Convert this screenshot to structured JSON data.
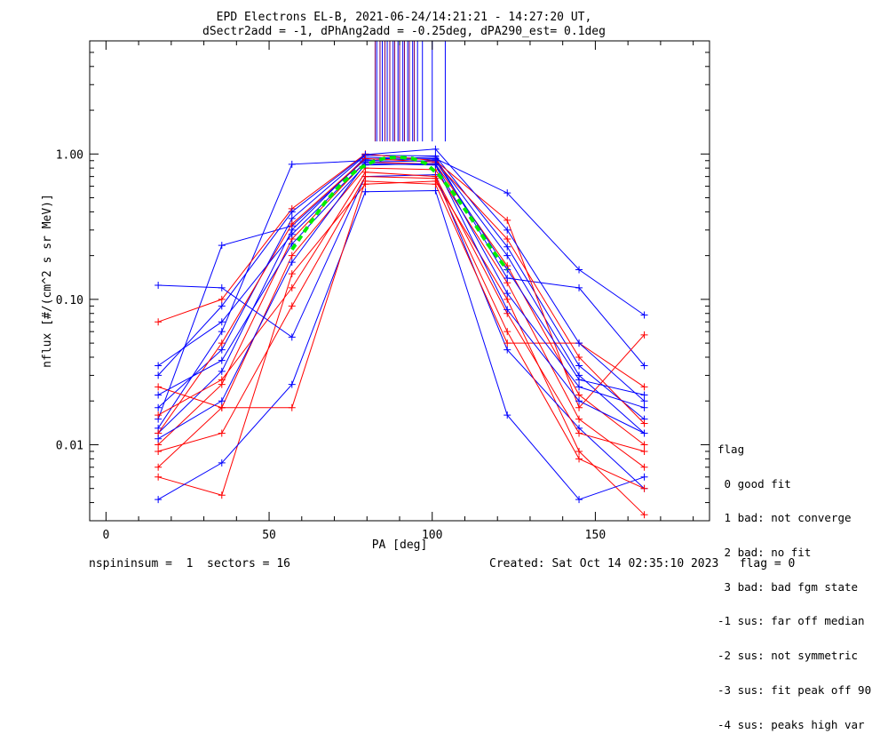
{
  "title_line1": "EPD Electrons EL-B, 2021-06-24/14:21:21 - 14:27:20 UT,",
  "title_line2": "dSectr2add = -1, dPhAng2add = -0.25deg, dPA290_est=   0.1deg",
  "footer_left": "nspininsum =  1  sectors = 16",
  "footer_right": "Created: Sat Oct 14 02:35:10 2023   flag = 0",
  "legend": {
    "title": "flag",
    "items": [
      " 0 good fit",
      " 1 bad: not converge",
      " 2 bad: no fit",
      " 3 bad: bad fgm state",
      "-1 sus: far off median",
      "-2 sus: not symmetric",
      "-3 sus: fit peak off 90",
      "-4 sus: peaks high var"
    ]
  },
  "colors": {
    "series_a": "#ff0000",
    "series_b": "#0000ff",
    "fit": "#00ee00",
    "marker_a": "#800060",
    "marker_b": "#0000ff"
  },
  "chart_data": {
    "type": "line",
    "title": "EPD Electrons EL-B, 2021-06-24/14:21:21 - 14:27:20 UT, dSectr2add = -1, dPhAng2add = -0.25deg, dPA290_est=   0.1deg",
    "xlabel": "PA [deg]",
    "ylabel": "nflux [#/(cm^2 s sr MeV)]",
    "xlim": [
      -5,
      185
    ],
    "ylim": [
      0.003,
      6.0
    ],
    "yscale": "log",
    "xticks": [
      0,
      50,
      100,
      150
    ],
    "yticks": [
      {
        "value": 0.01,
        "label": "0.01"
      },
      {
        "value": 0.1,
        "label": "0.10"
      },
      {
        "value": 1.0,
        "label": "1.00"
      }
    ],
    "pa_bins": [
      16,
      35.5,
      57,
      79.5,
      101,
      123,
      145,
      165
    ],
    "series": [
      {
        "color": "series_b",
        "x": [
          16,
          35.5,
          57,
          79.5,
          101,
          123,
          145,
          165
        ],
        "y": [
          0.012,
          0.032,
          0.3,
          0.95,
          0.92,
          0.2,
          0.03,
          0.012
        ]
      },
      {
        "color": "series_a",
        "x": [
          16,
          35.5,
          57,
          79.5,
          101,
          123,
          145,
          165
        ],
        "y": [
          0.01,
          0.026,
          0.26,
          0.88,
          0.85,
          0.17,
          0.022,
          0.01
        ]
      },
      {
        "color": "series_b",
        "x": [
          16,
          35.5,
          57,
          79.5,
          101,
          123,
          145,
          165
        ],
        "y": [
          0.018,
          0.045,
          0.36,
          0.98,
          0.97,
          0.23,
          0.035,
          0.015
        ]
      },
      {
        "color": "series_a",
        "x": [
          16,
          35.5,
          57,
          79.5,
          101,
          123,
          145,
          165
        ],
        "y": [
          0.007,
          0.018,
          0.2,
          0.8,
          0.78,
          0.13,
          0.015,
          0.007
        ]
      },
      {
        "color": "series_b",
        "x": [
          16,
          35.5,
          57,
          79.5,
          101,
          123,
          145,
          165
        ],
        "y": [
          0.013,
          0.06,
          0.85,
          0.9,
          0.93,
          0.54,
          0.16,
          0.078
        ]
      },
      {
        "color": "series_b",
        "x": [
          16,
          35.5,
          57,
          79.5,
          101,
          123,
          145,
          165
        ],
        "y": [
          0.015,
          0.235,
          0.32,
          0.92,
          0.95,
          0.14,
          0.12,
          0.035
        ]
      },
      {
        "color": "series_a",
        "x": [
          16,
          35.5,
          57,
          79.5,
          101,
          123,
          145,
          165
        ],
        "y": [
          0.07,
          0.1,
          0.42,
          1.0,
          0.9,
          0.35,
          0.018,
          0.057
        ]
      },
      {
        "color": "series_a",
        "x": [
          16,
          35.5,
          57,
          79.5,
          101,
          123,
          145,
          165
        ],
        "y": [
          0.006,
          0.0045,
          0.15,
          0.62,
          0.65,
          0.1,
          0.009,
          0.0033
        ]
      },
      {
        "color": "series_b",
        "x": [
          16,
          35.5,
          57,
          79.5,
          101,
          123,
          145,
          165
        ],
        "y": [
          0.125,
          0.12,
          0.055,
          0.7,
          0.72,
          0.045,
          0.013,
          0.005
        ]
      },
      {
        "color": "series_b",
        "x": [
          16,
          35.5,
          57,
          79.5,
          101,
          123,
          145,
          165
        ],
        "y": [
          0.0042,
          0.0075,
          0.026,
          0.55,
          0.56,
          0.016,
          0.0042,
          0.006
        ]
      },
      {
        "color": "series_a",
        "x": [
          16,
          35.5,
          57,
          79.5,
          101,
          123,
          145,
          165
        ],
        "y": [
          0.025,
          0.018,
          0.018,
          0.65,
          0.62,
          0.05,
          0.05,
          0.025
        ]
      },
      {
        "color": "series_b",
        "x": [
          16,
          35.5,
          57,
          79.5,
          101,
          123,
          145,
          165
        ],
        "y": [
          0.03,
          0.09,
          0.4,
          0.99,
          1.08,
          0.3,
          0.05,
          0.02
        ]
      },
      {
        "color": "series_a",
        "x": [
          16,
          35.5,
          57,
          79.5,
          101,
          123,
          145,
          165
        ],
        "y": [
          0.012,
          0.05,
          0.33,
          0.93,
          0.88,
          0.26,
          0.04,
          0.014
        ]
      },
      {
        "color": "series_b",
        "x": [
          16,
          35.5,
          57,
          79.5,
          101,
          123,
          145,
          165
        ],
        "y": [
          0.022,
          0.038,
          0.24,
          0.84,
          0.86,
          0.11,
          0.025,
          0.018
        ]
      },
      {
        "color": "series_a",
        "x": [
          16,
          35.5,
          57,
          79.5,
          101,
          123,
          145,
          165
        ],
        "y": [
          0.016,
          0.028,
          0.12,
          0.75,
          0.7,
          0.08,
          0.012,
          0.009
        ]
      },
      {
        "color": "series_b",
        "x": [
          16,
          35.5,
          57,
          79.5,
          101,
          123,
          145,
          165
        ],
        "y": [
          0.035,
          0.07,
          0.28,
          0.88,
          0.9,
          0.16,
          0.028,
          0.022
        ]
      },
      {
        "color": "series_a",
        "x": [
          16,
          35.5,
          57,
          79.5,
          101,
          123,
          145,
          165
        ],
        "y": [
          0.009,
          0.012,
          0.09,
          0.7,
          0.68,
          0.06,
          0.008,
          0.005
        ]
      },
      {
        "color": "series_b",
        "x": [
          16,
          35.5,
          57,
          79.5,
          101,
          123,
          145,
          165
        ],
        "y": [
          0.011,
          0.02,
          0.18,
          0.86,
          0.84,
          0.085,
          0.02,
          0.012
        ]
      }
    ],
    "fit": {
      "color": "fit",
      "x": [
        57,
        62,
        67,
        72,
        77,
        82,
        86,
        90,
        94,
        98,
        102,
        107,
        112,
        117,
        123
      ],
      "y": [
        0.22,
        0.32,
        0.46,
        0.62,
        0.78,
        0.89,
        0.94,
        0.95,
        0.93,
        0.86,
        0.72,
        0.52,
        0.36,
        0.24,
        0.16
      ]
    },
    "peak_markers": {
      "ymin": 1.22,
      "ymax": 6.0,
      "a": [
        82.5,
        84,
        85.5,
        87,
        88.5,
        90,
        91.5,
        93,
        94.5
      ],
      "b": [
        83,
        84.7,
        86.2,
        88,
        89.5,
        91,
        92.5,
        94,
        95.5,
        97,
        100,
        104
      ]
    }
  }
}
